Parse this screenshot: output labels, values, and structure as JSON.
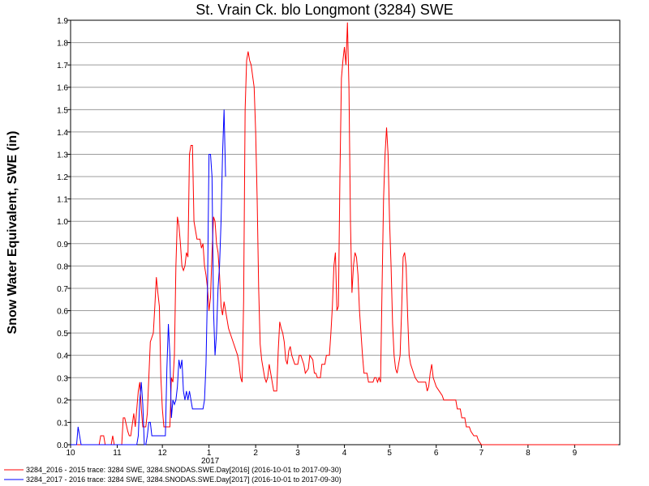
{
  "chart_data": {
    "type": "line",
    "title": "St. Vrain Ck. blo Longmont (3284) SWE",
    "ylabel": "Snow Water Equivalent, SWE (in)",
    "xlabel": "",
    "year_label": "2017",
    "x_tick_labels": [
      "10",
      "11",
      "12",
      "1",
      "2",
      "3",
      "4",
      "5",
      "6",
      "7",
      "8",
      "9"
    ],
    "y_tick_labels": [
      "0.0",
      "0.1",
      "0.2",
      "0.3",
      "0.4",
      "0.5",
      "0.6",
      "0.7",
      "0.8",
      "0.9",
      "1.0",
      "1.1",
      "1.2",
      "1.3",
      "1.4",
      "1.5",
      "1.6",
      "1.7",
      "1.8",
      "1.9"
    ],
    "ylim": [
      0,
      1.9
    ],
    "xlim": [
      "2016-10-01",
      "2017-09-30"
    ],
    "grid": true,
    "legend_position": "bottom",
    "series": [
      {
        "name": "3284_2016 - 2015 trace: 3284 SWE, 3284.SNODAS.SWE.Day[2016] (2016-10-01 to 2017-09-30)",
        "color": "#ff0000",
        "points": [
          [
            "2016-10-01",
            0.0
          ],
          [
            "2016-10-20",
            0.0
          ],
          [
            "2016-10-21",
            0.04
          ],
          [
            "2016-10-23",
            0.04
          ],
          [
            "2016-10-24",
            0.0
          ],
          [
            "2016-10-28",
            0.0
          ],
          [
            "2016-10-29",
            0.04
          ],
          [
            "2016-10-30",
            0.0
          ],
          [
            "2016-11-04",
            0.0
          ],
          [
            "2016-11-05",
            0.12
          ],
          [
            "2016-11-06",
            0.12
          ],
          [
            "2016-11-08",
            0.06
          ],
          [
            "2016-11-09",
            0.04
          ],
          [
            "2016-11-10",
            0.04
          ],
          [
            "2016-11-12",
            0.14
          ],
          [
            "2016-11-13",
            0.08
          ],
          [
            "2016-11-15",
            0.24
          ],
          [
            "2016-11-16",
            0.28
          ],
          [
            "2016-11-17",
            0.16
          ],
          [
            "2016-11-18",
            0.08
          ],
          [
            "2016-11-20",
            0.08
          ],
          [
            "2016-11-21",
            0.14
          ],
          [
            "2016-11-23",
            0.46
          ],
          [
            "2016-11-24",
            0.48
          ],
          [
            "2016-11-25",
            0.5
          ],
          [
            "2016-11-26",
            0.62
          ],
          [
            "2016-11-27",
            0.75
          ],
          [
            "2016-11-28",
            0.68
          ],
          [
            "2016-11-29",
            0.62
          ],
          [
            "2016-11-30",
            0.3
          ],
          [
            "2016-12-01",
            0.16
          ],
          [
            "2016-12-02",
            0.08
          ],
          [
            "2016-12-03",
            0.08
          ],
          [
            "2016-12-06",
            0.08
          ],
          [
            "2016-12-07",
            0.3
          ],
          [
            "2016-12-08",
            0.28
          ],
          [
            "2016-12-09",
            0.4
          ],
          [
            "2016-12-10",
            0.8
          ],
          [
            "2016-12-11",
            1.02
          ],
          [
            "2016-12-12",
            0.98
          ],
          [
            "2016-12-13",
            0.9
          ],
          [
            "2016-12-14",
            0.8
          ],
          [
            "2016-12-15",
            0.78
          ],
          [
            "2016-12-16",
            0.8
          ],
          [
            "2016-12-17",
            0.86
          ],
          [
            "2016-12-18",
            0.84
          ],
          [
            "2016-12-19",
            1.3
          ],
          [
            "2016-12-20",
            1.34
          ],
          [
            "2016-12-21",
            1.34
          ],
          [
            "2016-12-22",
            1.0
          ],
          [
            "2016-12-23",
            0.96
          ],
          [
            "2016-12-24",
            0.92
          ],
          [
            "2016-12-26",
            0.92
          ],
          [
            "2016-12-27",
            0.88
          ],
          [
            "2016-12-28",
            0.9
          ],
          [
            "2016-12-29",
            0.8
          ],
          [
            "2016-12-30",
            0.76
          ],
          [
            "2016-12-31",
            0.7
          ],
          [
            "2017-01-01",
            0.6
          ],
          [
            "2017-01-02",
            0.66
          ],
          [
            "2017-01-03",
            0.86
          ],
          [
            "2017-01-04",
            1.02
          ],
          [
            "2017-01-05",
            1.0
          ],
          [
            "2017-01-06",
            0.9
          ],
          [
            "2017-01-07",
            0.86
          ],
          [
            "2017-01-08",
            0.76
          ],
          [
            "2017-01-09",
            0.62
          ],
          [
            "2017-01-10",
            0.58
          ],
          [
            "2017-01-11",
            0.64
          ],
          [
            "2017-01-12",
            0.6
          ],
          [
            "2017-01-13",
            0.56
          ],
          [
            "2017-01-14",
            0.52
          ],
          [
            "2017-01-15",
            0.5
          ],
          [
            "2017-01-17",
            0.46
          ],
          [
            "2017-01-19",
            0.42
          ],
          [
            "2017-01-20",
            0.4
          ],
          [
            "2017-01-21",
            0.36
          ],
          [
            "2017-01-22",
            0.3
          ],
          [
            "2017-01-23",
            0.28
          ],
          [
            "2017-01-24",
            0.64
          ],
          [
            "2017-01-25",
            1.5
          ],
          [
            "2017-01-26",
            1.72
          ],
          [
            "2017-01-27",
            1.76
          ],
          [
            "2017-01-28",
            1.72
          ],
          [
            "2017-01-29",
            1.7
          ],
          [
            "2017-01-30",
            1.65
          ],
          [
            "2017-01-31",
            1.6
          ],
          [
            "2017-02-01",
            1.4
          ],
          [
            "2017-02-02",
            1.1
          ],
          [
            "2017-02-03",
            0.7
          ],
          [
            "2017-02-04",
            0.45
          ],
          [
            "2017-02-05",
            0.38
          ],
          [
            "2017-02-06",
            0.34
          ],
          [
            "2017-02-07",
            0.3
          ],
          [
            "2017-02-08",
            0.28
          ],
          [
            "2017-02-09",
            0.3
          ],
          [
            "2017-02-10",
            0.36
          ],
          [
            "2017-02-11",
            0.32
          ],
          [
            "2017-02-12",
            0.28
          ],
          [
            "2017-02-13",
            0.24
          ],
          [
            "2017-02-15",
            0.24
          ],
          [
            "2017-02-16",
            0.42
          ],
          [
            "2017-02-17",
            0.55
          ],
          [
            "2017-02-18",
            0.52
          ],
          [
            "2017-02-19",
            0.5
          ],
          [
            "2017-02-20",
            0.46
          ],
          [
            "2017-02-21",
            0.38
          ],
          [
            "2017-02-22",
            0.36
          ],
          [
            "2017-02-23",
            0.42
          ],
          [
            "2017-02-24",
            0.44
          ],
          [
            "2017-02-25",
            0.4
          ],
          [
            "2017-02-26",
            0.38
          ],
          [
            "2017-02-27",
            0.36
          ],
          [
            "2017-03-01",
            0.36
          ],
          [
            "2017-03-02",
            0.4
          ],
          [
            "2017-03-03",
            0.4
          ],
          [
            "2017-03-05",
            0.36
          ],
          [
            "2017-03-06",
            0.32
          ],
          [
            "2017-03-08",
            0.34
          ],
          [
            "2017-03-09",
            0.4
          ],
          [
            "2017-03-11",
            0.38
          ],
          [
            "2017-03-12",
            0.32
          ],
          [
            "2017-03-13",
            0.32
          ],
          [
            "2017-03-14",
            0.3
          ],
          [
            "2017-03-16",
            0.3
          ],
          [
            "2017-03-17",
            0.36
          ],
          [
            "2017-03-18",
            0.36
          ],
          [
            "2017-03-19",
            0.36
          ],
          [
            "2017-03-20",
            0.4
          ],
          [
            "2017-03-21",
            0.4
          ],
          [
            "2017-03-22",
            0.4
          ],
          [
            "2017-03-23",
            0.5
          ],
          [
            "2017-03-24",
            0.62
          ],
          [
            "2017-03-25",
            0.8
          ],
          [
            "2017-03-26",
            0.86
          ],
          [
            "2017-03-27",
            0.6
          ],
          [
            "2017-03-28",
            0.62
          ],
          [
            "2017-03-29",
            1.2
          ],
          [
            "2017-03-30",
            1.64
          ],
          [
            "2017-03-31",
            1.72
          ],
          [
            "2017-04-01",
            1.78
          ],
          [
            "2017-04-02",
            1.7
          ],
          [
            "2017-04-03",
            1.89
          ],
          [
            "2017-04-04",
            1.6
          ],
          [
            "2017-04-05",
            1.0
          ],
          [
            "2017-04-06",
            0.68
          ],
          [
            "2017-04-07",
            0.8
          ],
          [
            "2017-04-08",
            0.86
          ],
          [
            "2017-04-09",
            0.84
          ],
          [
            "2017-04-10",
            0.76
          ],
          [
            "2017-04-11",
            0.6
          ],
          [
            "2017-04-12",
            0.5
          ],
          [
            "2017-04-13",
            0.4
          ],
          [
            "2017-04-14",
            0.32
          ],
          [
            "2017-04-16",
            0.32
          ],
          [
            "2017-04-17",
            0.28
          ],
          [
            "2017-04-20",
            0.28
          ],
          [
            "2017-04-21",
            0.3
          ],
          [
            "2017-04-22",
            0.3
          ],
          [
            "2017-04-23",
            0.28
          ],
          [
            "2017-04-24",
            0.3
          ],
          [
            "2017-04-25",
            0.28
          ],
          [
            "2017-04-26",
            0.7
          ],
          [
            "2017-04-27",
            1.1
          ],
          [
            "2017-04-28",
            1.3
          ],
          [
            "2017-04-29",
            1.42
          ],
          [
            "2017-04-30",
            1.3
          ],
          [
            "2017-05-01",
            1.0
          ],
          [
            "2017-05-02",
            0.8
          ],
          [
            "2017-05-03",
            0.54
          ],
          [
            "2017-05-04",
            0.4
          ],
          [
            "2017-05-05",
            0.34
          ],
          [
            "2017-05-06",
            0.32
          ],
          [
            "2017-05-07",
            0.36
          ],
          [
            "2017-05-08",
            0.4
          ],
          [
            "2017-05-09",
            0.6
          ],
          [
            "2017-05-10",
            0.84
          ],
          [
            "2017-05-11",
            0.86
          ],
          [
            "2017-05-12",
            0.8
          ],
          [
            "2017-05-13",
            0.58
          ],
          [
            "2017-05-14",
            0.4
          ],
          [
            "2017-05-15",
            0.36
          ],
          [
            "2017-05-16",
            0.34
          ],
          [
            "2017-05-17",
            0.32
          ],
          [
            "2017-05-18",
            0.3
          ],
          [
            "2017-05-20",
            0.28
          ],
          [
            "2017-05-25",
            0.28
          ],
          [
            "2017-05-26",
            0.24
          ],
          [
            "2017-05-27",
            0.26
          ],
          [
            "2017-05-28",
            0.32
          ],
          [
            "2017-05-29",
            0.36
          ],
          [
            "2017-05-30",
            0.3
          ],
          [
            "2017-06-01",
            0.26
          ],
          [
            "2017-06-03",
            0.24
          ],
          [
            "2017-06-05",
            0.22
          ],
          [
            "2017-06-06",
            0.2
          ],
          [
            "2017-06-14",
            0.2
          ],
          [
            "2017-06-15",
            0.16
          ],
          [
            "2017-06-17",
            0.16
          ],
          [
            "2017-06-18",
            0.12
          ],
          [
            "2017-06-20",
            0.12
          ],
          [
            "2017-06-21",
            0.08
          ],
          [
            "2017-06-23",
            0.08
          ],
          [
            "2017-06-24",
            0.06
          ],
          [
            "2017-06-26",
            0.04
          ],
          [
            "2017-06-28",
            0.04
          ],
          [
            "2017-06-29",
            0.02
          ],
          [
            "2017-07-01",
            0.0
          ],
          [
            "2017-09-30",
            0.0
          ]
        ]
      },
      {
        "name": "3284_2017 - 2016 trace: 3284 SWE, 3284.SNODAS.SWE.Day[2017] (2016-10-01 to 2017-09-30)",
        "color": "#0000ff",
        "points": [
          [
            "2016-10-01",
            0.0
          ],
          [
            "2016-10-05",
            0.0
          ],
          [
            "2016-10-06",
            0.08
          ],
          [
            "2016-10-07",
            0.04
          ],
          [
            "2016-10-08",
            0.0
          ],
          [
            "2016-11-14",
            0.0
          ],
          [
            "2016-11-15",
            0.04
          ],
          [
            "2016-11-16",
            0.2
          ],
          [
            "2016-11-17",
            0.28
          ],
          [
            "2016-11-18",
            0.18
          ],
          [
            "2016-11-19",
            0.0
          ],
          [
            "2016-11-20",
            0.0
          ],
          [
            "2016-11-21",
            0.04
          ],
          [
            "2016-11-22",
            0.1
          ],
          [
            "2016-11-23",
            0.1
          ],
          [
            "2016-11-24",
            0.04
          ],
          [
            "2016-12-03",
            0.04
          ],
          [
            "2016-12-04",
            0.34
          ],
          [
            "2016-12-05",
            0.54
          ],
          [
            "2016-12-06",
            0.4
          ],
          [
            "2016-12-07",
            0.12
          ],
          [
            "2016-12-08",
            0.2
          ],
          [
            "2016-12-09",
            0.18
          ],
          [
            "2016-12-10",
            0.2
          ],
          [
            "2016-12-11",
            0.26
          ],
          [
            "2016-12-12",
            0.38
          ],
          [
            "2016-12-13",
            0.34
          ],
          [
            "2016-12-14",
            0.38
          ],
          [
            "2016-12-15",
            0.24
          ],
          [
            "2016-12-16",
            0.2
          ],
          [
            "2016-12-17",
            0.24
          ],
          [
            "2016-12-18",
            0.2
          ],
          [
            "2016-12-19",
            0.24
          ],
          [
            "2016-12-20",
            0.2
          ],
          [
            "2016-12-21",
            0.16
          ],
          [
            "2016-12-28",
            0.16
          ],
          [
            "2016-12-29",
            0.2
          ],
          [
            "2016-12-30",
            0.36
          ],
          [
            "2016-12-31",
            0.7
          ],
          [
            "2017-01-01",
            1.3
          ],
          [
            "2017-01-02",
            1.3
          ],
          [
            "2017-01-03",
            1.2
          ],
          [
            "2017-01-04",
            0.6
          ],
          [
            "2017-01-05",
            0.4
          ],
          [
            "2017-01-06",
            0.5
          ],
          [
            "2017-01-07",
            0.7
          ],
          [
            "2017-01-08",
            0.8
          ],
          [
            "2017-01-09",
            1.0
          ],
          [
            "2017-01-10",
            1.3
          ],
          [
            "2017-01-11",
            1.5
          ],
          [
            "2017-01-12",
            1.2
          ]
        ]
      }
    ]
  }
}
